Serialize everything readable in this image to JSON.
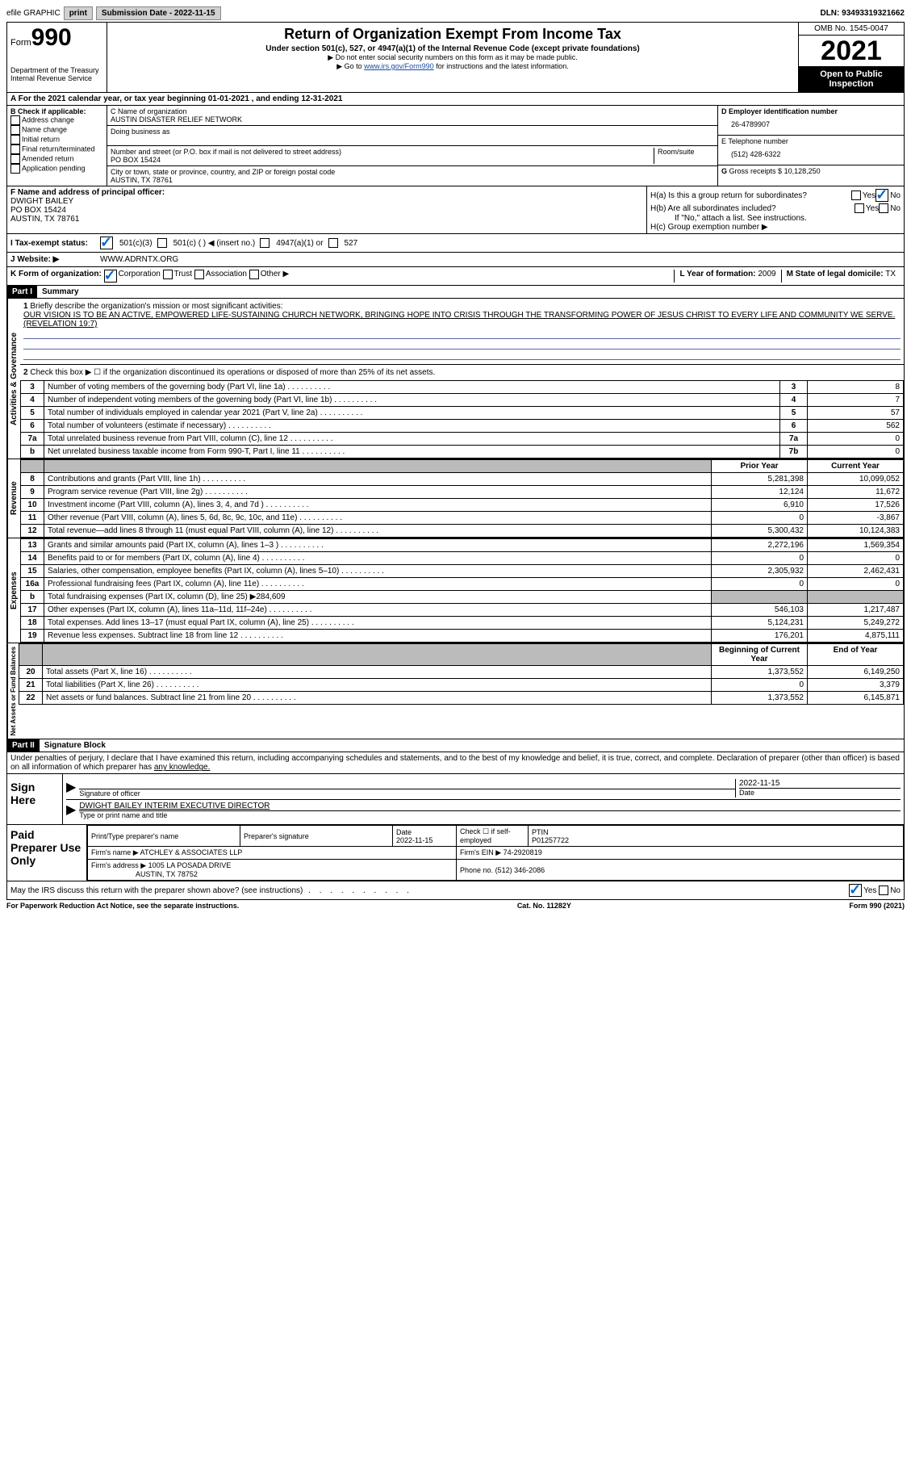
{
  "topbar": {
    "efile": "efile GRAPHIC",
    "print": "print",
    "subdate_label": "Submission Date - ",
    "subdate": "2022-11-15",
    "dln": "DLN: 93493319321662"
  },
  "header": {
    "form": "Form",
    "num": "990",
    "dept1": "Department of the Treasury",
    "dept2": "Internal Revenue Service",
    "title": "Return of Organization Exempt From Income Tax",
    "subtitle": "Under section 501(c), 527, or 4947(a)(1) of the Internal Revenue Code (except private foundations)",
    "note1": "▶ Do not enter social security numbers on this form as it may be made public.",
    "note2_pre": "▶ Go to ",
    "note2_link": "www.irs.gov/Form990",
    "note2_post": " for instructions and the latest information.",
    "omb": "OMB No. 1545-0047",
    "year": "2021",
    "open": "Open to Public Inspection"
  },
  "a_line": "A For the 2021 calendar year, or tax year beginning 01-01-2021   , and ending 12-31-2021",
  "b": {
    "label": "B Check if applicable:",
    "items": [
      "Address change",
      "Name change",
      "Initial return",
      "Final return/terminated",
      "Amended return",
      "Application pending"
    ]
  },
  "c": {
    "name_lbl": "C Name of organization",
    "name": "AUSTIN DISASTER RELIEF NETWORK",
    "dba_lbl": "Doing business as",
    "street_lbl": "Number and street (or P.O. box if mail is not delivered to street address)",
    "room_lbl": "Room/suite",
    "street": "PO BOX 15424",
    "city_lbl": "City or town, state or province, country, and ZIP or foreign postal code",
    "city": "AUSTIN, TX  78761"
  },
  "d": {
    "lbl": "D Employer identification number",
    "val": "26-4789907"
  },
  "e": {
    "lbl": "E Telephone number",
    "val": "(512) 428-6322"
  },
  "g": {
    "lbl": "G",
    "text": "Gross receipts $",
    "val": "10,128,250"
  },
  "f": {
    "lbl": "F Name and address of principal officer:",
    "name": "DWIGHT BAILEY",
    "addr1": "PO BOX 15424",
    "addr2": "AUSTIN, TX  78761"
  },
  "h": {
    "a": "H(a)  Is this a group return for subordinates?",
    "b": "H(b)  Are all subordinates included?",
    "b2": "If \"No,\" attach a list. See instructions.",
    "c": "H(c)  Group exemption number ▶"
  },
  "i": {
    "lbl": "I   Tax-exempt status:",
    "o1": "501(c)(3)",
    "o2": "501(c) (  ) ◀ (insert no.)",
    "o3": "4947(a)(1) or",
    "o4": "527"
  },
  "j": {
    "lbl": "J   Website: ▶",
    "val": "WWW.ADRNTX.ORG"
  },
  "k": {
    "lbl": "K Form of organization:",
    "corp": "Corporation",
    "trust": "Trust",
    "assoc": "Association",
    "other": "Other ▶"
  },
  "l": {
    "lbl": "L Year of formation:",
    "val": "2009"
  },
  "m": {
    "lbl": "M State of legal domicile:",
    "val": "TX"
  },
  "part1": {
    "bar": "Part I",
    "title": "Summary"
  },
  "line1": {
    "num": "1",
    "text": "Briefly describe the organization's mission or most significant activities:",
    "mission": "OUR VISION IS TO BE AN ACTIVE, EMPOWERED LIFE-SUSTAINING CHURCH NETWORK, BRINGING HOPE INTO CRISIS THROUGH THE TRANSFORMING POWER OF JESUS CHRIST TO EVERY LIFE AND COMMUNITY WE SERVE. (REVELATION 19:7)"
  },
  "line2": {
    "num": "2",
    "text": "Check this box ▶ ☐ if the organization discontinued its operations or disposed of more than 25% of its net assets."
  },
  "gov_rows": [
    {
      "n": "3",
      "d": "Number of voting members of the governing body (Part VI, line 1a)",
      "b": "3",
      "v": "8"
    },
    {
      "n": "4",
      "d": "Number of independent voting members of the governing body (Part VI, line 1b)",
      "b": "4",
      "v": "7"
    },
    {
      "n": "5",
      "d": "Total number of individuals employed in calendar year 2021 (Part V, line 2a)",
      "b": "5",
      "v": "57"
    },
    {
      "n": "6",
      "d": "Total number of volunteers (estimate if necessary)",
      "b": "6",
      "v": "562"
    },
    {
      "n": "7a",
      "d": "Total unrelated business revenue from Part VIII, column (C), line 12",
      "b": "7a",
      "v": "0"
    },
    {
      "n": "b",
      "d": "Net unrelated business taxable income from Form 990-T, Part I, line 11",
      "b": "7b",
      "v": "0"
    }
  ],
  "rev_header": {
    "py": "Prior Year",
    "cy": "Current Year"
  },
  "rev_rows": [
    {
      "n": "8",
      "d": "Contributions and grants (Part VIII, line 1h)",
      "py": "5,281,398",
      "cy": "10,099,052"
    },
    {
      "n": "9",
      "d": "Program service revenue (Part VIII, line 2g)",
      "py": "12,124",
      "cy": "11,672"
    },
    {
      "n": "10",
      "d": "Investment income (Part VIII, column (A), lines 3, 4, and 7d )",
      "py": "6,910",
      "cy": "17,526"
    },
    {
      "n": "11",
      "d": "Other revenue (Part VIII, column (A), lines 5, 6d, 8c, 9c, 10c, and 11e)",
      "py": "0",
      "cy": "-3,867"
    },
    {
      "n": "12",
      "d": "Total revenue—add lines 8 through 11 (must equal Part VIII, column (A), line 12)",
      "py": "5,300,432",
      "cy": "10,124,383"
    }
  ],
  "exp_rows": [
    {
      "n": "13",
      "d": "Grants and similar amounts paid (Part IX, column (A), lines 1–3 )",
      "py": "2,272,196",
      "cy": "1,569,354"
    },
    {
      "n": "14",
      "d": "Benefits paid to or for members (Part IX, column (A), line 4)",
      "py": "0",
      "cy": "0"
    },
    {
      "n": "15",
      "d": "Salaries, other compensation, employee benefits (Part IX, column (A), lines 5–10)",
      "py": "2,305,932",
      "cy": "2,462,431"
    },
    {
      "n": "16a",
      "d": "Professional fundraising fees (Part IX, column (A), line 11e)",
      "py": "0",
      "cy": "0"
    },
    {
      "n": "b",
      "d": "Total fundraising expenses (Part IX, column (D), line 25) ▶284,609",
      "gray": true
    },
    {
      "n": "17",
      "d": "Other expenses (Part IX, column (A), lines 11a–11d, 11f–24e)",
      "py": "546,103",
      "cy": "1,217,487"
    },
    {
      "n": "18",
      "d": "Total expenses. Add lines 13–17 (must equal Part IX, column (A), line 25)",
      "py": "5,124,231",
      "cy": "5,249,272"
    },
    {
      "n": "19",
      "d": "Revenue less expenses. Subtract line 18 from line 12",
      "py": "176,201",
      "cy": "4,875,111"
    }
  ],
  "net_header": {
    "py": "Beginning of Current Year",
    "cy": "End of Year"
  },
  "net_rows": [
    {
      "n": "20",
      "d": "Total assets (Part X, line 16)",
      "py": "1,373,552",
      "cy": "6,149,250"
    },
    {
      "n": "21",
      "d": "Total liabilities (Part X, line 26)",
      "py": "0",
      "cy": "3,379"
    },
    {
      "n": "22",
      "d": "Net assets or fund balances. Subtract line 21 from line 20",
      "py": "1,373,552",
      "cy": "6,145,871"
    }
  ],
  "part2": {
    "bar": "Part II",
    "title": "Signature Block"
  },
  "penalties": "Under penalties of perjury, I declare that I have examined this return, including accompanying schedules and statements, and to the best of my knowledge and belief, it is true, correct, and complete. Declaration of preparer (other than officer) is based on all information of which preparer has ",
  "penalties2": "any knowledge.",
  "sign": {
    "here": "Sign Here",
    "date": "2022-11-15",
    "sig_lbl": "Signature of officer",
    "date_lbl": "Date",
    "name": "DWIGHT BAILEY INTERIM EXECUTIVE DIRECTOR",
    "name_lbl": "Type or print name and title"
  },
  "paid": {
    "title": "Paid Preparer Use Only",
    "h1": "Print/Type preparer's name",
    "h2": "Preparer's signature",
    "h3": "Date",
    "h3v": "2022-11-15",
    "h4": "Check ☐ if self-employed",
    "h5": "PTIN",
    "h5v": "P01257722",
    "firm_lbl": "Firm's name      ▶",
    "firm": "ATCHLEY & ASSOCIATES LLP",
    "ein_lbl": "Firm's EIN ▶",
    "ein": "74-2920819",
    "addr_lbl": "Firm's address ▶",
    "addr1": "1005 LA POSADA DRIVE",
    "addr2": "AUSTIN, TX  78752",
    "phone_lbl": "Phone no.",
    "phone": "(512) 346-2086"
  },
  "discuss": "May the IRS discuss this return with the preparer shown above? (see instructions)",
  "footer": {
    "l": "For Paperwork Reduction Act Notice, see the separate instructions.",
    "m": "Cat. No. 11282Y",
    "r": "Form 990 (2021)"
  },
  "tabs": {
    "act": "Activities & Governance",
    "rev": "Revenue",
    "exp": "Expenses",
    "net": "Net Assets or Fund Balances"
  },
  "yn": {
    "yes": "Yes",
    "no": "No"
  }
}
